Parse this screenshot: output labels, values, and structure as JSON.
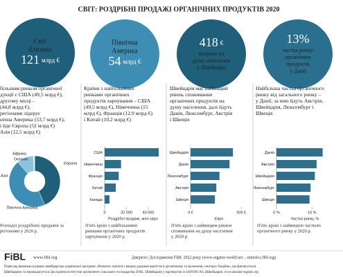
{
  "title": "СВІТ: РОЗДРІБНІ ПРОДАЖІ ОРГАНІЧНИХ ПРОДУКТІВ 2020",
  "highlights": [
    {
      "before": [
        "Світ",
        "близько"
      ],
      "figure": "121",
      "unit": "млрд €",
      "after": []
    },
    {
      "before": [
        "Північна",
        "Америка"
      ],
      "figure": "54",
      "unit": "млрд €",
      "after": []
    },
    {
      "before": [],
      "figure": "418",
      "unit": "€",
      "after": [
        "витрати на",
        "душу населення",
        "у Швейцарії"
      ]
    },
    {
      "before": [],
      "figure": "13%",
      "unit": "",
      "after": [
        "частка ринку",
        "органічних",
        "продуктів",
        "у Данії"
      ]
    }
  ],
  "columns": [
    {
      "lines": [
        "більшим ринком органічної",
        "дукції є США (49,5 млрд €),",
        "другому місці –",
        "(44,8 млрд €).",
        "регіонами лідерує",
        "нічна Америка (53,7 млрд €),",
        "і йде Європа (52 млрд €)",
        "Азія (12,5 млрд €)"
      ],
      "caption": [
        "Розподіл роздрібних продажів за",
        "регіонами у 2020 р."
      ]
    },
    {
      "lines": [
        "Країни з найбільшими",
        "ринками органічних",
        "продуктів харчування – США",
        "(49,5 млрд €), Німеччина (15",
        "млрд €), Франція (12,9 млрд €)",
        "і Китай (10,2 млрд €)"
      ],
      "caption": [
        "П'ять країн з найбільшими",
        "ринками органічних продуктів",
        "харчування у 2020 р."
      ]
    },
    {
      "lines": [
        "Швейцарія має найвищий",
        "рівень споживання",
        "органічних продуктів на",
        "душу населення, далі йдуть",
        "Данія, Люксембург, Австрія",
        "і Швеція"
      ],
      "caption": [
        "П'ять країн з найвищим рівнем",
        "споживання на душу населення",
        "у 2020 р."
      ]
    },
    {
      "lines": [
        "Найбільша частка органічного",
        "ринку від загального ринку –",
        "у Данії, за нею йдуть Австрія,",
        "Швейцарія, Люксембург і",
        "Швеція"
      ],
      "caption": [
        "П'ять країн з найвищою часткою",
        "органічного ринку у 2020 р."
      ]
    }
  ],
  "chart_data": [
    {
      "type": "pie",
      "categories": [
        "Європа",
        "Північна Америка",
        "Азія",
        "Океанія",
        "Африка"
      ],
      "values": [
        52,
        53.7,
        12.5,
        1.0,
        0.05
      ],
      "colors": [
        "#1f5f7a",
        "#3d8db5",
        "#8cc3da",
        "#c4e0ec",
        "#e3f0f6"
      ]
    },
    {
      "type": "barh",
      "categories": [
        "США",
        "Німеччина",
        "Франція",
        "Китай",
        "Канада"
      ],
      "values": [
        49500,
        15000,
        12900,
        10200,
        4400
      ],
      "color": "#2f6f8c",
      "xlim": [
        0,
        52000
      ],
      "xticks": [
        0,
        {
          "value": 20000,
          "label": "20 000"
        },
        {
          "value": 40000,
          "label": "40 000"
        }
      ],
      "xlabel": "Роздрібні продажі, млн євро"
    },
    {
      "type": "barh",
      "categories": [
        "Швейцарія",
        "Данія",
        "Люксембург",
        "Австрія",
        "Швеція"
      ],
      "values": [
        418,
        384,
        285,
        254,
        240
      ],
      "color": "#2f6f8c",
      "xlim": [
        0,
        560
      ],
      "xticks": [
        {
          "value": 0,
          "label": "0 €"
        },
        {
          "value": 500,
          "label": "500 €"
        }
      ],
      "xlabel": "Євро"
    },
    {
      "type": "barh",
      "categories": [
        "Данія",
        "Австрія",
        "Швейцарія",
        "Люксембург",
        "Швеція"
      ],
      "values": [
        13,
        11.3,
        10.8,
        9.6,
        9.3
      ],
      "color": "#2f6f8c",
      "xlim": [
        0,
        16
      ],
      "xticks": [
        {
          "value": 0,
          "label": "0 %"
        },
        {
          "value": 10,
          "label": "10 %"
        }
      ],
      "xlabel": "Частка ринку, %"
    }
  ],
  "footer": {
    "logo": "FiBL",
    "site": "www.fibl.org",
    "source": "Джерело: Дослідження FiBL 2022 року (www.organic-world.net – statistics.fibl.org)",
    "note": [
      "Переклад виконано в рамках швейцарсько-української програми «Розвиток торгівлі з вищою доданою вартістю в органічному та молочному секторах України», що фінансується",
      "Швейцарією та впроваджується Дослідним інститутом органічного сільського господарства (FiBL, Швейцарія) у партнерстві із SAFOSO AG (Швейцарія). www.ukraine-organic.org"
    ]
  }
}
